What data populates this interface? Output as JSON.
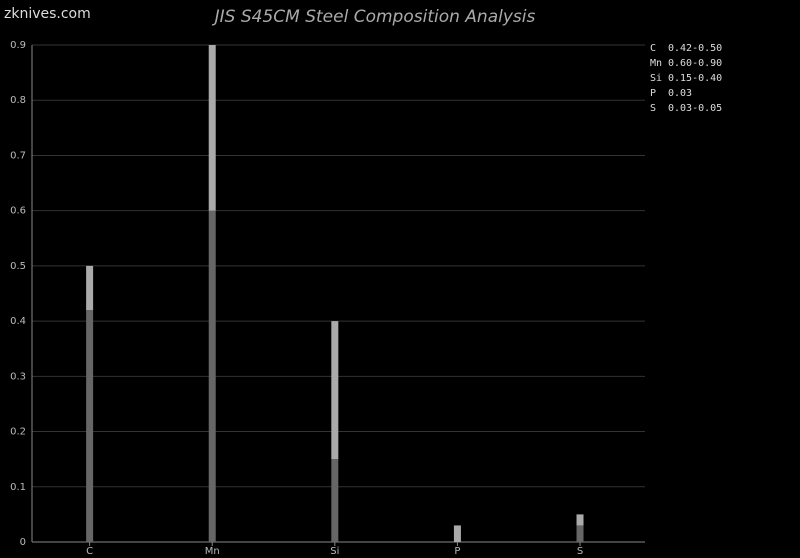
{
  "watermark": "zknives.com",
  "chart_data": {
    "type": "range_bar",
    "title": "JIS S45CM Steel Composition Analysis",
    "categories": [
      "C",
      "Mn",
      "Si",
      "P",
      "S"
    ],
    "min": [
      0.42,
      0.6,
      0.15,
      null,
      0.03
    ],
    "max": [
      0.5,
      0.9,
      0.4,
      0.03,
      0.05
    ],
    "value_labels": [
      "0.42-0.50",
      "0.60-0.90",
      "0.15-0.40",
      "0.03",
      "0.03-0.05"
    ],
    "colors": {
      "min": "#666666",
      "max": "#aaaaaa"
    },
    "ylim": [
      0,
      0.9
    ],
    "yticks": [
      0,
      0.1,
      0.2,
      0.3,
      0.4,
      0.5,
      0.6,
      0.7,
      0.8,
      0.9
    ],
    "grid": true,
    "legend": "upper right"
  }
}
